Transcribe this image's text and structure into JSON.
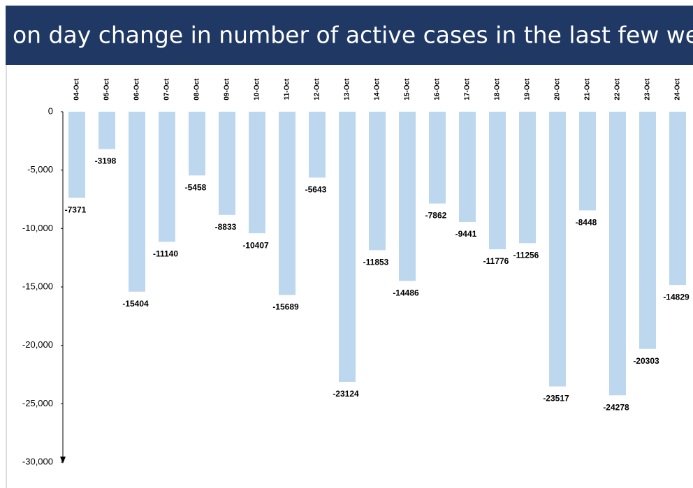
{
  "chart_data": {
    "type": "bar",
    "title": "Day on day change in number of active cases in the last few weeks",
    "categories": [
      "04-Oct",
      "05-Oct",
      "06-Oct",
      "07-Oct",
      "08-Oct",
      "09-Oct",
      "10-Oct",
      "11-Oct",
      "12-Oct",
      "13-Oct",
      "14-Oct",
      "15-Oct",
      "16-Oct",
      "17-Oct",
      "18-Oct",
      "19-Oct",
      "20-Oct",
      "21-Oct",
      "22-Oct",
      "23-Oct",
      "24-Oct"
    ],
    "values": [
      -7371,
      -3198,
      -15404,
      -11140,
      -5458,
      -8833,
      -10407,
      -15689,
      -5643,
      -23124,
      -11853,
      -14486,
      -7862,
      -9441,
      -11776,
      -11256,
      -23517,
      -8448,
      -24278,
      -20303,
      -14829
    ],
    "color": "#bdd7ee",
    "ylim": [
      -30000,
      0
    ],
    "yticks": [
      0,
      {
        "value": -5000,
        "label": "-5,000"
      },
      {
        "value": -10000,
        "label": "-10,000"
      },
      {
        "value": -15000,
        "label": "-15,000"
      },
      {
        "value": -20000,
        "label": "-20,000"
      },
      {
        "value": -25000,
        "label": "-25,000"
      },
      {
        "value": -30000,
        "label": "-30,000"
      }
    ],
    "grid": false
  }
}
